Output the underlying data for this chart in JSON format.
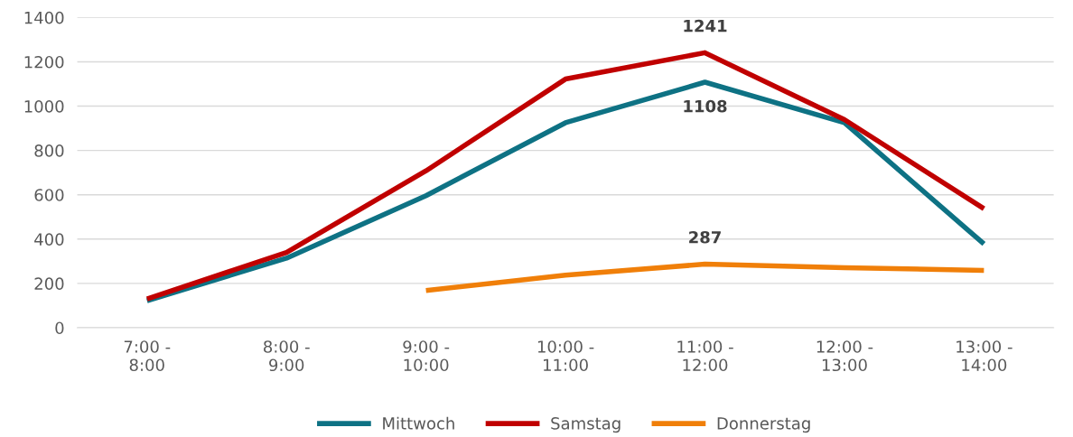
{
  "chart_data": {
    "type": "line",
    "categories": [
      "7:00 -\n8:00",
      "8:00 -\n9:00",
      "9:00 -\n10:00",
      "10:00 -\n11:00",
      "11:00 -\n12:00",
      "12:00 -\n13:00",
      "13:00 -\n14:00"
    ],
    "series": [
      {
        "name": "Mittwoch",
        "color": "#0e7284",
        "values": [
          122,
          314,
          596,
          925,
          1108,
          925,
          378
        ],
        "value_labels": [
          null,
          null,
          null,
          null,
          "1108",
          null,
          null
        ]
      },
      {
        "name": "Samstag",
        "color": "#c00000",
        "values": [
          130,
          340,
          708,
          1122,
          1241,
          939,
          537
        ],
        "value_labels": [
          null,
          null,
          null,
          null,
          "1241",
          null,
          null
        ]
      },
      {
        "name": "Donnerstag",
        "color": "#f07f09",
        "values": [
          null,
          null,
          168,
          237,
          287,
          271,
          259
        ],
        "value_labels": [
          null,
          null,
          null,
          null,
          "287",
          null,
          null
        ]
      }
    ],
    "ylim": [
      0,
      1400
    ],
    "yticks": [
      0,
      200,
      400,
      600,
      800,
      1000,
      1200,
      1400
    ],
    "grid": "y",
    "legend": "bottom",
    "marker": "none",
    "line_style": "solid"
  }
}
